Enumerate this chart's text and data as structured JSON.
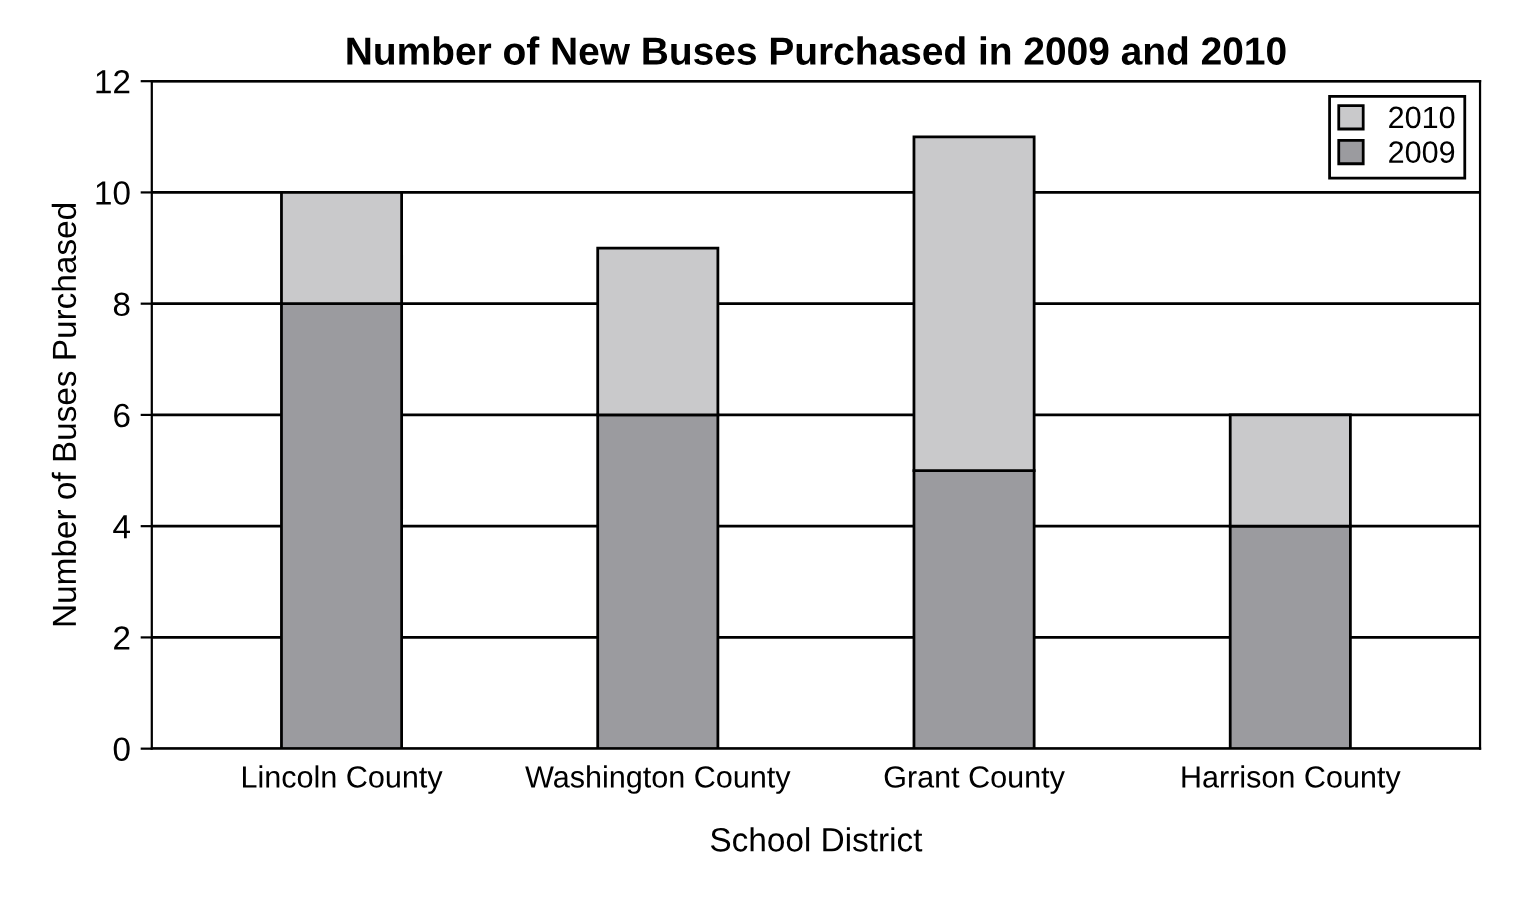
{
  "chart_data": {
    "type": "bar",
    "title": "Number of New Buses Purchased in 2009 and 2010",
    "xlabel": "School District",
    "ylabel": "Number of Buses Purchased",
    "categories": [
      "Lincoln County",
      "Washington County",
      "Grant County",
      "Harrison County"
    ],
    "series": [
      {
        "name": "2009",
        "color": "#9b9b9f",
        "values": [
          8,
          6,
          5,
          4
        ]
      },
      {
        "name": "2010",
        "color": "#c9c9cb",
        "values": [
          2,
          3,
          6,
          2
        ]
      }
    ],
    "stacked": true,
    "ylim": [
      0,
      12
    ],
    "yticks": [
      0,
      2,
      4,
      6,
      8,
      10,
      12
    ],
    "grid": "y",
    "legend": "top right"
  }
}
